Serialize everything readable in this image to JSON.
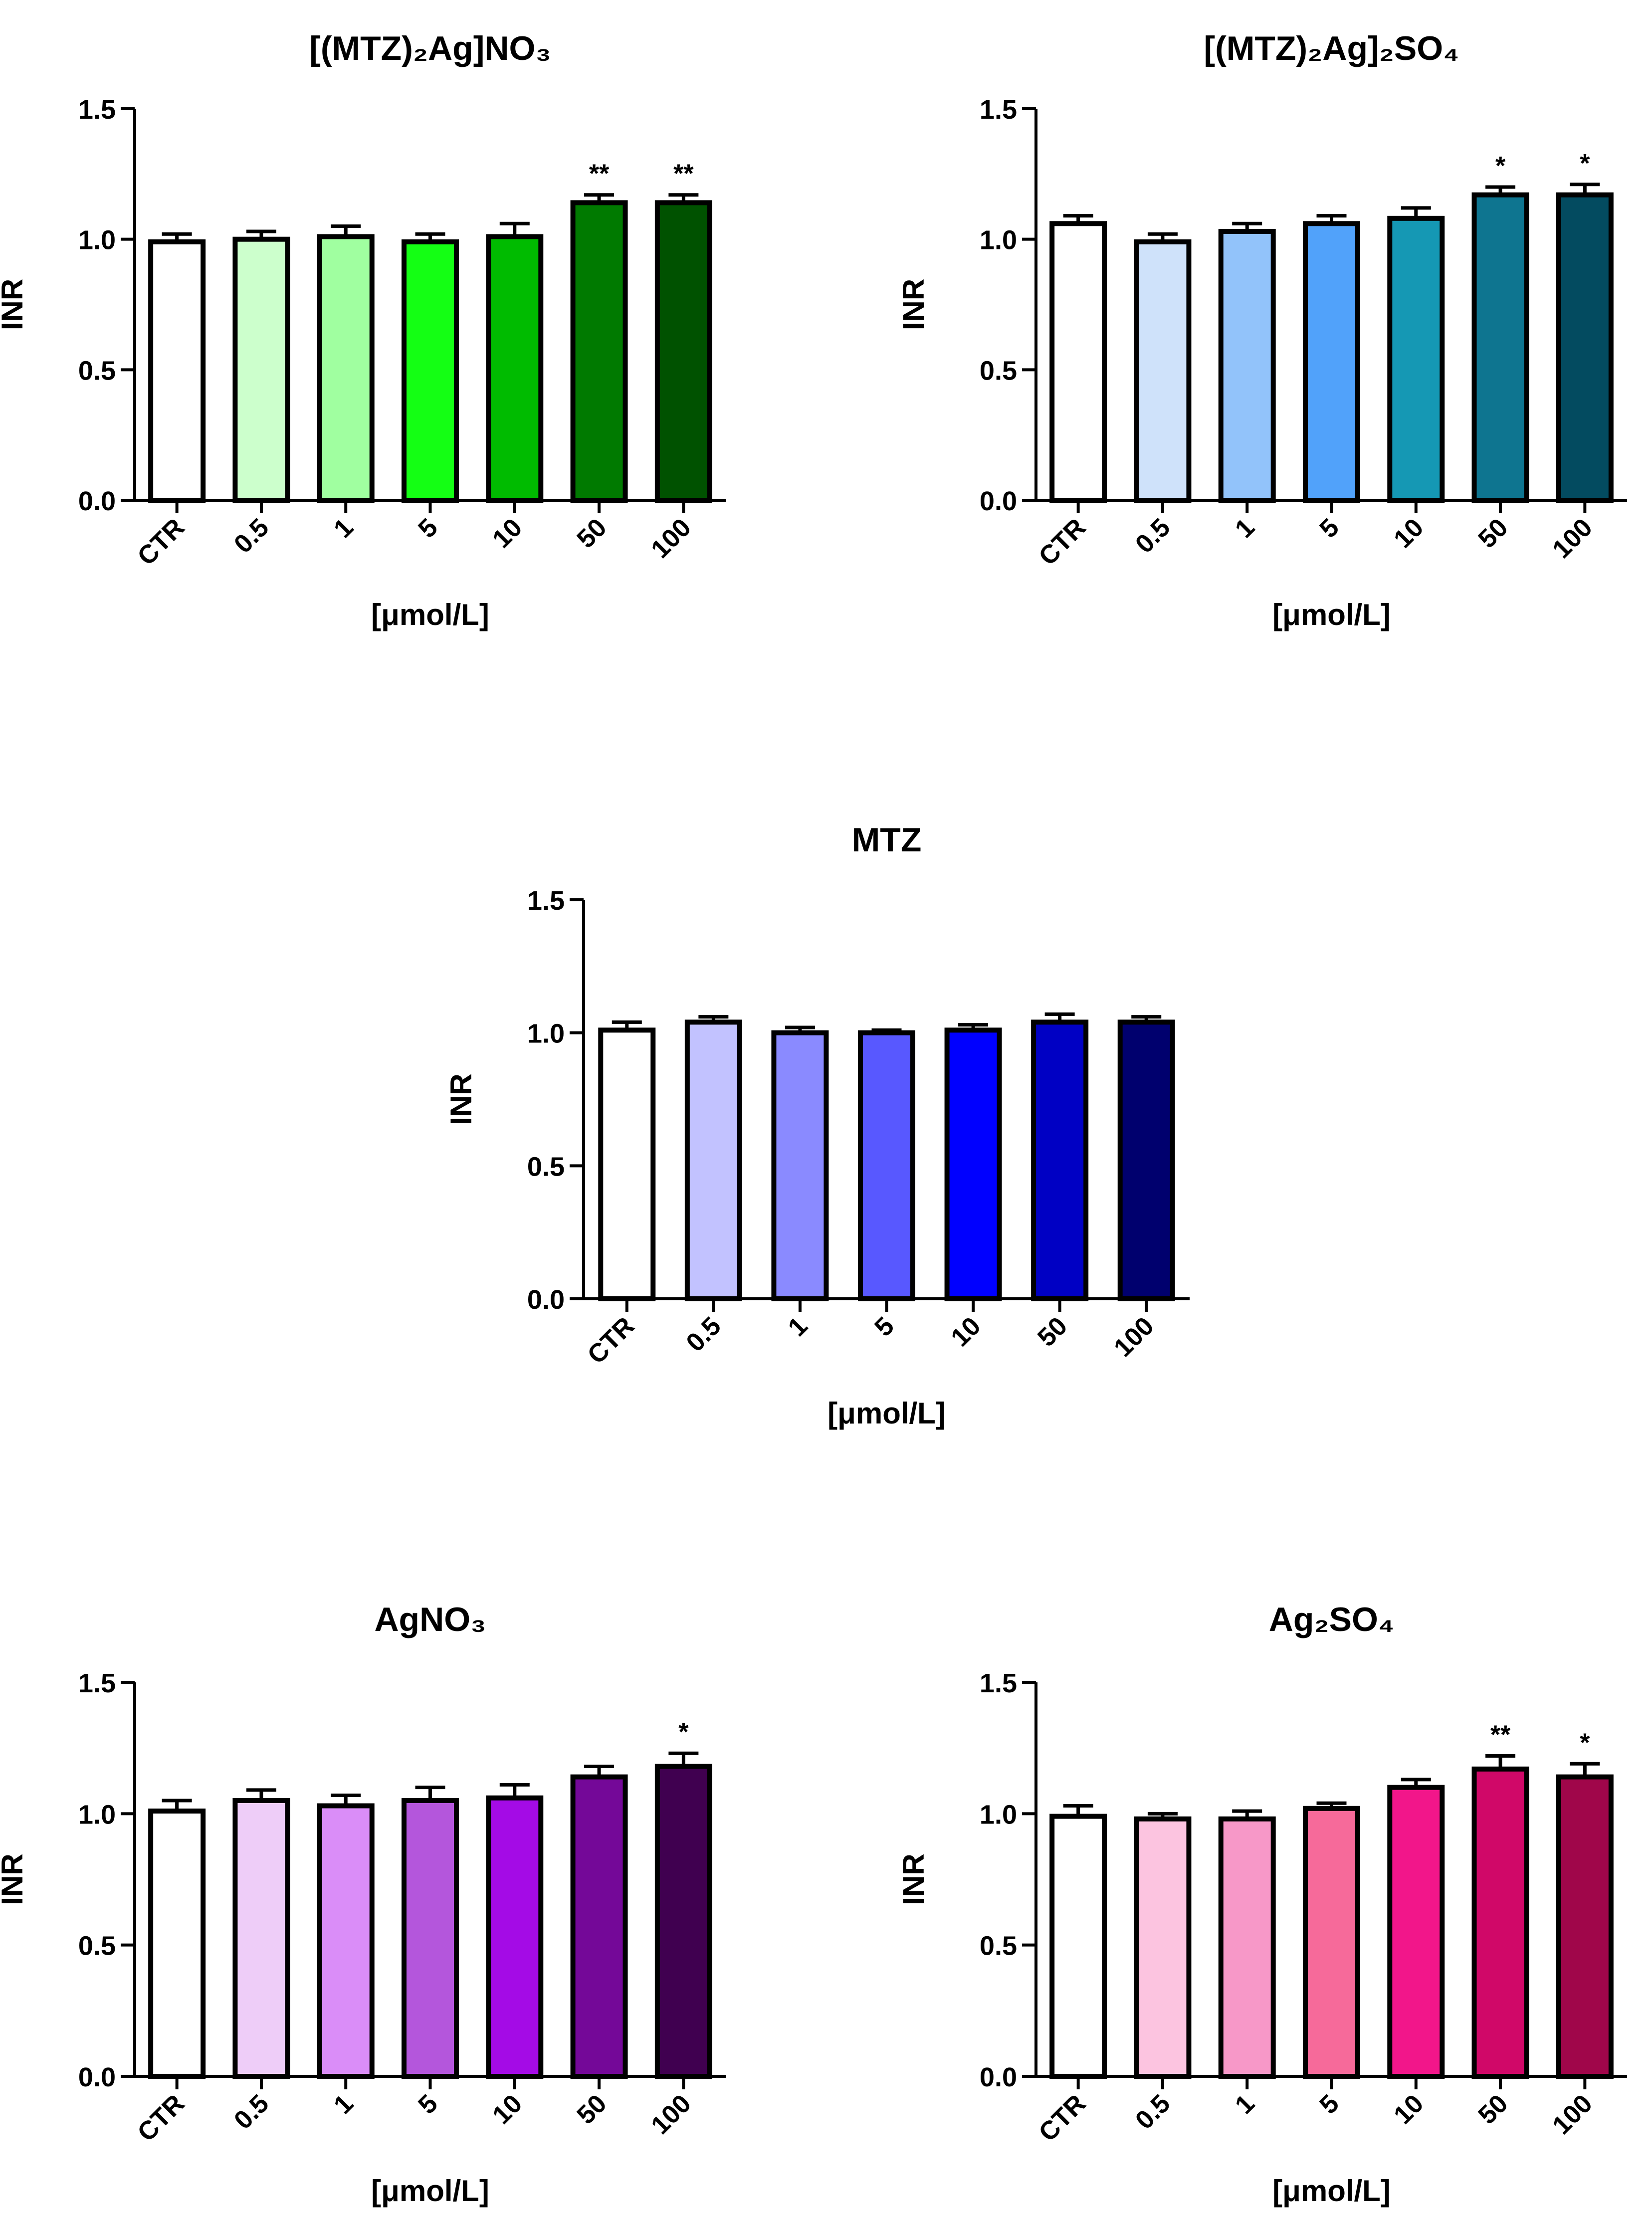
{
  "chart_data": [
    {
      "type": "bar",
      "title": "[(MTZ)₂Ag]NO₃",
      "xlabel": "[μmol/L]",
      "ylabel": "INR",
      "ylim": [
        0,
        1.5
      ],
      "yticks": [
        "0.0",
        "0.5",
        "1.0",
        "1.5"
      ],
      "categories": [
        "CTR",
        "0.5",
        "1",
        "5",
        "10",
        "50",
        "100"
      ],
      "values": [
        0.99,
        1.0,
        1.01,
        0.99,
        1.01,
        1.14,
        1.14
      ],
      "errors": [
        0.03,
        0.03,
        0.04,
        0.03,
        0.05,
        0.03,
        0.03
      ],
      "significance": [
        "",
        "",
        "",
        "",
        "",
        "**",
        "**"
      ],
      "colors": [
        "#FFFFFF",
        "#CCFFCC",
        "#A0FFA0",
        "#14FF14",
        "#00BB00",
        "#007A00",
        "#005200"
      ]
    },
    {
      "type": "bar",
      "title": "[(MTZ)₂Ag]₂SO₄",
      "xlabel": "[μmol/L]",
      "ylabel": "INR",
      "ylim": [
        0,
        1.5
      ],
      "yticks": [
        "0.0",
        "0.5",
        "1.0",
        "1.5"
      ],
      "categories": [
        "CTR",
        "0.5",
        "1",
        "5",
        "10",
        "50",
        "100"
      ],
      "values": [
        1.06,
        0.99,
        1.03,
        1.06,
        1.08,
        1.17,
        1.17
      ],
      "errors": [
        0.03,
        0.03,
        0.03,
        0.03,
        0.04,
        0.03,
        0.04
      ],
      "significance": [
        "",
        "",
        "",
        "",
        "",
        "*",
        "*"
      ],
      "colors": [
        "#FFFFFF",
        "#CFE2FA",
        "#92C3FA",
        "#51A2FA",
        "#1598B4",
        "#0E7590",
        "#034B60"
      ]
    },
    {
      "type": "bar",
      "title": "MTZ",
      "xlabel": "[μmol/L]",
      "ylabel": "INR",
      "ylim": [
        0,
        1.5
      ],
      "yticks": [
        "0.0",
        "0.5",
        "1.0",
        "1.5"
      ],
      "categories": [
        "CTR",
        "0.5",
        "1",
        "5",
        "10",
        "50",
        "100"
      ],
      "values": [
        1.01,
        1.04,
        1.0,
        1.0,
        1.01,
        1.04,
        1.04
      ],
      "errors": [
        0.03,
        0.02,
        0.02,
        0.01,
        0.02,
        0.03,
        0.02
      ],
      "significance": [
        "",
        "",
        "",
        "",
        "",
        "",
        ""
      ],
      "colors": [
        "#FFFFFF",
        "#C2C2FF",
        "#8A8AFF",
        "#5858FF",
        "#0000FF",
        "#0000C4",
        "#00006E"
      ]
    },
    {
      "type": "bar",
      "title": "AgNO₃",
      "xlabel": "[μmol/L]",
      "ylabel": "INR",
      "ylim": [
        0,
        1.5
      ],
      "yticks": [
        "0.0",
        "0.5",
        "1.0",
        "1.5"
      ],
      "categories": [
        "CTR",
        "0.5",
        "1",
        "5",
        "10",
        "50",
        "100"
      ],
      "values": [
        1.01,
        1.05,
        1.03,
        1.05,
        1.06,
        1.14,
        1.18
      ],
      "errors": [
        0.04,
        0.04,
        0.04,
        0.05,
        0.05,
        0.04,
        0.05
      ],
      "significance": [
        "",
        "",
        "",
        "",
        "",
        "",
        "*"
      ],
      "colors": [
        "#FFFFFF",
        "#EECDF8",
        "#DA8DF8",
        "#B456DC",
        "#A40BE6",
        "#740898",
        "#400050"
      ]
    },
    {
      "type": "bar",
      "title": "Ag₂SO₄",
      "xlabel": "[μmol/L]",
      "ylabel": "INR",
      "ylim": [
        0,
        1.5
      ],
      "yticks": [
        "0.0",
        "0.5",
        "1.0",
        "1.5"
      ],
      "categories": [
        "CTR",
        "0.5",
        "1",
        "5",
        "10",
        "50",
        "100"
      ],
      "values": [
        0.99,
        0.98,
        0.98,
        1.02,
        1.1,
        1.17,
        1.14
      ],
      "errors": [
        0.04,
        0.02,
        0.03,
        0.02,
        0.03,
        0.05,
        0.05
      ],
      "significance": [
        "",
        "",
        "",
        "",
        "",
        "**",
        "*"
      ],
      "colors": [
        "#FFFFFF",
        "#FCC4E0",
        "#F798C8",
        "#F66A9A",
        "#F2168A",
        "#D00868",
        "#A0064A"
      ]
    }
  ]
}
